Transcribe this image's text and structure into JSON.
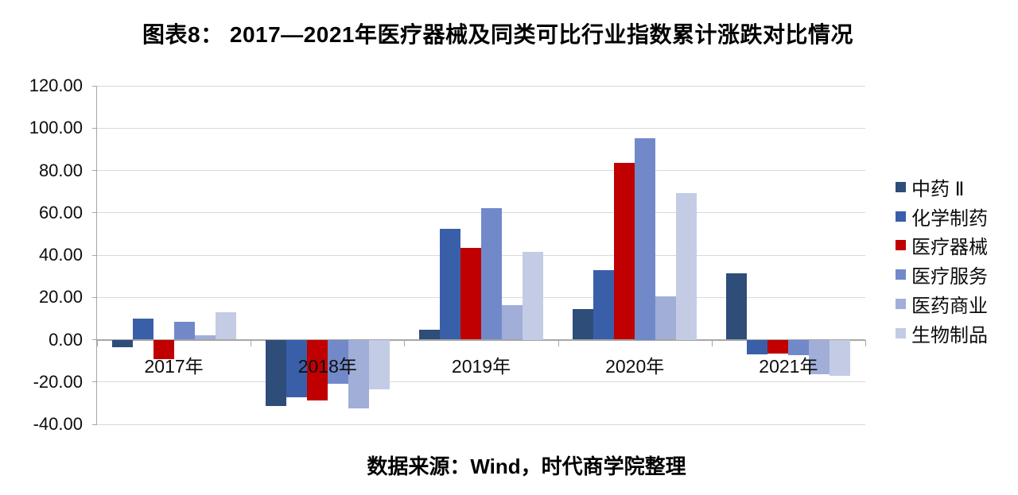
{
  "title": "图表8： 2017—2021年医疗器械及同类可比行业指数累计涨跌对比情况",
  "source_note": "数据来源：Wind，时代商学院整理",
  "chart_data": {
    "type": "bar",
    "title": "图表8： 2017—2021年医疗器械及同类可比行业指数累计涨跌对比情况",
    "categories": [
      "2017年",
      "2018年",
      "2019年",
      "2020年",
      "2021年"
    ],
    "series": [
      {
        "name": "中药 Ⅱ",
        "color": "#2E4D79",
        "values": [
          -3.4,
          -31.2,
          4.8,
          14.3,
          31.5
        ]
      },
      {
        "name": "化学制药",
        "color": "#3A5FA9",
        "values": [
          10.0,
          -27.2,
          52.3,
          32.8,
          -6.9
        ]
      },
      {
        "name": "医疗器械",
        "color": "#C00000",
        "values": [
          -9.0,
          -28.7,
          43.3,
          83.7,
          -6.7
        ]
      },
      {
        "name": "医疗服务",
        "color": "#7289C9",
        "values": [
          8.6,
          -21.0,
          62.0,
          95.2,
          -7.4
        ]
      },
      {
        "name": "医药商业",
        "color": "#A0AED8",
        "values": [
          2.1,
          -32.3,
          16.3,
          20.5,
          -16.4
        ]
      },
      {
        "name": "生物制品",
        "color": "#C3CCE4",
        "values": [
          13.1,
          -23.4,
          41.5,
          69.5,
          -17.1
        ]
      }
    ],
    "ylim": [
      -40,
      120
    ],
    "ytick_step": 20,
    "ytick_labels": [
      "120.00",
      "100.00",
      "80.00",
      "60.00",
      "40.00",
      "20.00",
      "0.00",
      "-20.00",
      "-40.00"
    ],
    "grid": true,
    "legend_position": "right",
    "source": "数据来源：Wind，时代商学院整理",
    "colors": {
      "gridline": "#D9D9D9",
      "axis": "#A6A6A6",
      "text": "#0D0D0D"
    }
  }
}
